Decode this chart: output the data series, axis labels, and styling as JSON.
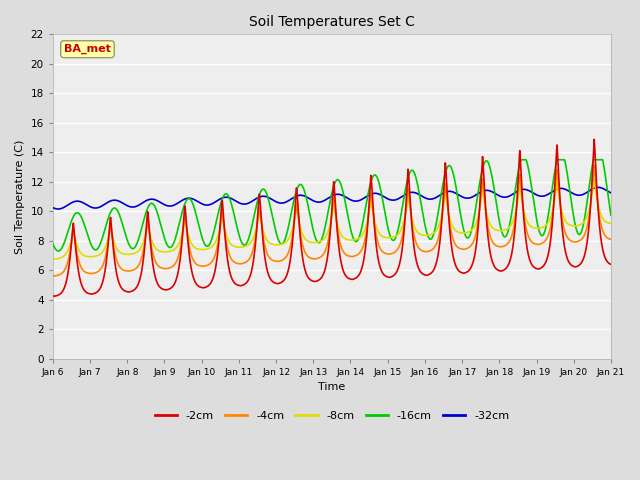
{
  "title": "Soil Temperatures Set C",
  "xlabel": "Time",
  "ylabel": "Soil Temperature (C)",
  "ylim": [
    0,
    22
  ],
  "yticks": [
    0,
    2,
    4,
    6,
    8,
    10,
    12,
    14,
    16,
    18,
    20,
    22
  ],
  "colors": {
    "-2cm": "#dd0000",
    "-4cm": "#ff8800",
    "-8cm": "#dddd00",
    "-16cm": "#00cc00",
    "-32cm": "#0000cc"
  },
  "legend_labels": [
    "-2cm",
    "-4cm",
    "-8cm",
    "-16cm",
    "-32cm"
  ],
  "annotation": "BA_met",
  "annotation_color": "#cc0000",
  "annotation_bg": "#ffffaa",
  "background_color": "#dddddd",
  "plot_bg": "#eeeeee",
  "x_labels": [
    "Jan 6",
    "Jan 7",
    "Jan 8",
    "Jan 9",
    "Jan 10",
    "Jan 11",
    "Jan 12",
    "Jan 13",
    "Jan 14",
    "Jan 15",
    "Jan 16",
    "Jan 17",
    "Jan 18",
    "Jan 19",
    "Jan 20",
    "Jan 21"
  ],
  "num_points": 1440
}
